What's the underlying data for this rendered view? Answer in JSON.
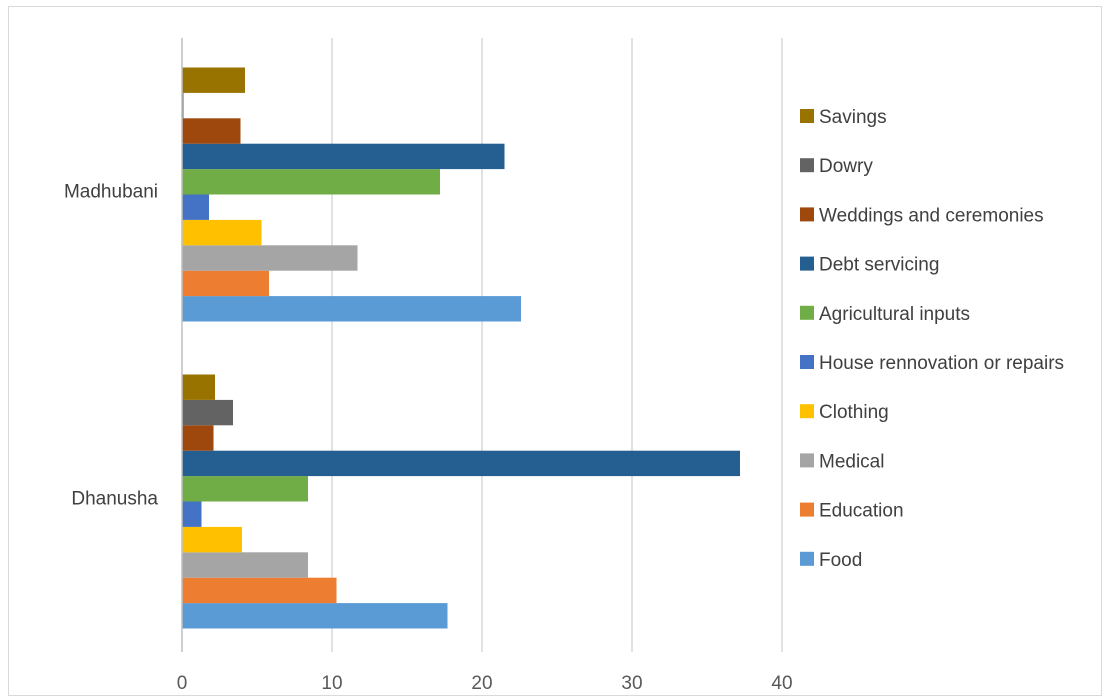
{
  "chart_data": {
    "type": "bar",
    "orientation": "horizontal",
    "title": "",
    "xlabel": "",
    "ylabel": "",
    "categories": [
      "Dhanusha",
      "Madhubani"
    ],
    "xlim": [
      0,
      40
    ],
    "xticks": [
      0,
      10,
      20,
      30,
      40
    ],
    "grid": true,
    "legend_position": "right",
    "series": [
      {
        "name": "Food",
        "color": "#5B9BD5",
        "values": [
          17.7,
          22.6
        ]
      },
      {
        "name": "Education",
        "color": "#ED7D31",
        "values": [
          10.3,
          5.8
        ]
      },
      {
        "name": "Medical",
        "color": "#A5A5A5",
        "values": [
          8.4,
          11.7
        ]
      },
      {
        "name": "Clothing",
        "color": "#FFC000",
        "values": [
          4.0,
          5.3
        ]
      },
      {
        "name": "House rennovation or repairs",
        "color": "#4472C4",
        "values": [
          1.3,
          1.8
        ]
      },
      {
        "name": "Agricultural inputs",
        "color": "#70AD47",
        "values": [
          8.4,
          17.2
        ]
      },
      {
        "name": "Debt servicing",
        "color": "#255E91",
        "values": [
          37.2,
          21.5
        ]
      },
      {
        "name": "Weddings and ceremonies",
        "color": "#9E480E",
        "values": [
          2.1,
          3.9
        ]
      },
      {
        "name": "Dowry",
        "color": "#636363",
        "values": [
          3.4,
          0.1
        ]
      },
      {
        "name": "Savings",
        "color": "#997300",
        "values": [
          2.2,
          4.2
        ]
      }
    ]
  }
}
